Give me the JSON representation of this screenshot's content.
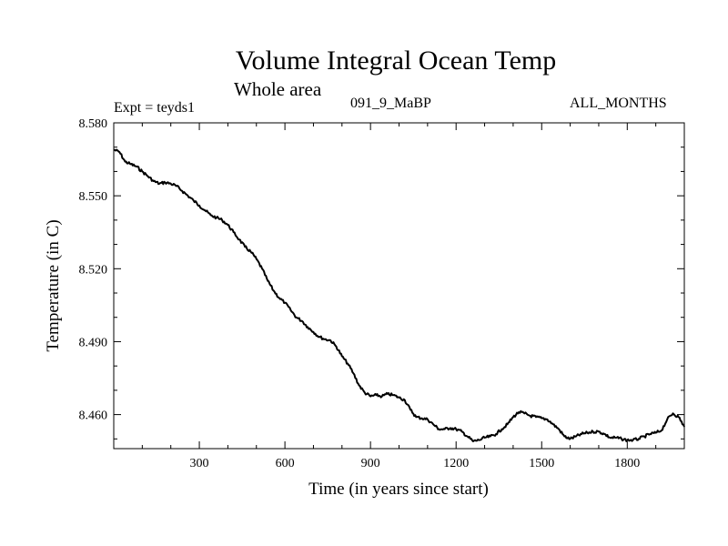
{
  "header": {
    "title": "Volume Integral Ocean Temp",
    "subtitle": "Whole area",
    "experiment": "Expt = teyds1",
    "period": "091_9_MaBP",
    "months": "ALL_MONTHS"
  },
  "chart_data": {
    "type": "line",
    "title": "Volume Integral Ocean Temp",
    "subtitle": "Whole area",
    "xlabel": "Time (in years since start)",
    "ylabel": "Temperature (in C)",
    "xlim": [
      0,
      2000
    ],
    "ylim": [
      8.446,
      8.58
    ],
    "x_ticks": [
      300,
      600,
      900,
      1200,
      1500,
      1800
    ],
    "x_tick_labels": [
      "300",
      "600",
      "900",
      "1200",
      "1500",
      "1800"
    ],
    "y_ticks": [
      8.58,
      8.55,
      8.52,
      8.49,
      8.46
    ],
    "y_tick_labels": [
      "8.580",
      "8.550",
      "8.520",
      "8.490",
      "8.460"
    ],
    "grid": false,
    "series": [
      {
        "name": "Volume integral ocean temperature",
        "x": [
          0,
          20,
          40,
          60,
          80,
          100,
          120,
          140,
          160,
          180,
          200,
          220,
          240,
          260,
          280,
          300,
          320,
          340,
          360,
          380,
          400,
          420,
          440,
          460,
          480,
          500,
          520,
          540,
          560,
          580,
          600,
          620,
          640,
          660,
          680,
          700,
          720,
          740,
          760,
          780,
          800,
          820,
          840,
          860,
          880,
          900,
          920,
          940,
          960,
          980,
          1000,
          1020,
          1040,
          1060,
          1080,
          1100,
          1120,
          1140,
          1160,
          1180,
          1200,
          1220,
          1240,
          1260,
          1280,
          1300,
          1320,
          1340,
          1360,
          1380,
          1400,
          1420,
          1440,
          1460,
          1480,
          1500,
          1520,
          1540,
          1560,
          1580,
          1600,
          1620,
          1640,
          1660,
          1680,
          1700,
          1720,
          1740,
          1760,
          1780,
          1800,
          1820,
          1840,
          1860,
          1880,
          1900,
          1920,
          1940,
          1960,
          1980,
          2000
        ],
        "values": [
          8.569,
          8.568,
          8.564,
          8.563,
          8.562,
          8.56,
          8.558,
          8.556,
          8.555,
          8.5555,
          8.555,
          8.554,
          8.552,
          8.55,
          8.548,
          8.546,
          8.544,
          8.542,
          8.541,
          8.54,
          8.538,
          8.535,
          8.532,
          8.529,
          8.527,
          8.524,
          8.52,
          8.515,
          8.511,
          8.508,
          8.506,
          8.503,
          8.5,
          8.4985,
          8.496,
          8.494,
          8.492,
          8.491,
          8.4905,
          8.488,
          8.484,
          8.481,
          8.477,
          8.472,
          8.469,
          8.4675,
          8.468,
          8.4675,
          8.4685,
          8.468,
          8.467,
          8.466,
          8.462,
          8.459,
          8.4585,
          8.458,
          8.456,
          8.454,
          8.454,
          8.4545,
          8.454,
          8.453,
          8.451,
          8.449,
          8.4495,
          8.4505,
          8.451,
          8.452,
          8.454,
          8.456,
          8.459,
          8.461,
          8.4605,
          8.4595,
          8.459,
          8.4585,
          8.458,
          8.456,
          8.454,
          8.451,
          8.45,
          8.451,
          8.452,
          8.4525,
          8.453,
          8.453,
          8.452,
          8.4505,
          8.4505,
          8.45,
          8.4495,
          8.4495,
          8.45,
          8.451,
          8.452,
          8.4525,
          8.4535,
          8.458,
          8.4605,
          8.459,
          8.455
        ]
      }
    ]
  }
}
